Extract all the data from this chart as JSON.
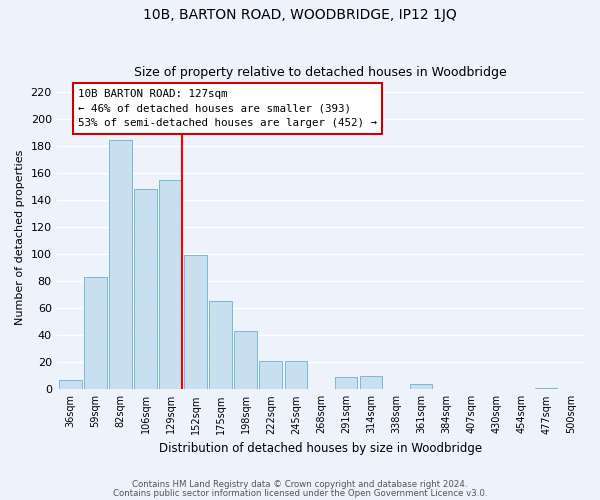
{
  "title": "10B, BARTON ROAD, WOODBRIDGE, IP12 1JQ",
  "subtitle": "Size of property relative to detached houses in Woodbridge",
  "xlabel": "Distribution of detached houses by size in Woodbridge",
  "ylabel": "Number of detached properties",
  "bar_labels": [
    "36sqm",
    "59sqm",
    "82sqm",
    "106sqm",
    "129sqm",
    "152sqm",
    "175sqm",
    "198sqm",
    "222sqm",
    "245sqm",
    "268sqm",
    "291sqm",
    "314sqm",
    "338sqm",
    "361sqm",
    "384sqm",
    "407sqm",
    "430sqm",
    "454sqm",
    "477sqm",
    "500sqm"
  ],
  "bar_values": [
    7,
    83,
    184,
    148,
    155,
    99,
    65,
    43,
    21,
    21,
    0,
    9,
    10,
    0,
    4,
    0,
    0,
    0,
    0,
    1,
    0
  ],
  "bar_color": "#c8dff0",
  "bar_edge_color": "#7ab8d4",
  "vline_x_index": 4,
  "vline_color": "red",
  "annotation_title": "10B BARTON ROAD: 127sqm",
  "annotation_line1": "← 46% of detached houses are smaller (393)",
  "annotation_line2": "53% of semi-detached houses are larger (452) →",
  "annotation_box_color": "white",
  "annotation_box_edge": "#cc0000",
  "ylim": [
    0,
    225
  ],
  "yticks": [
    0,
    20,
    40,
    60,
    80,
    100,
    120,
    140,
    160,
    180,
    200,
    220
  ],
  "footer1": "Contains HM Land Registry data © Crown copyright and database right 2024.",
  "footer2": "Contains public sector information licensed under the Open Government Licence v3.0.",
  "bg_color": "#eef2fb",
  "grid_color": "#ffffff",
  "title_fontsize": 10,
  "subtitle_fontsize": 9
}
